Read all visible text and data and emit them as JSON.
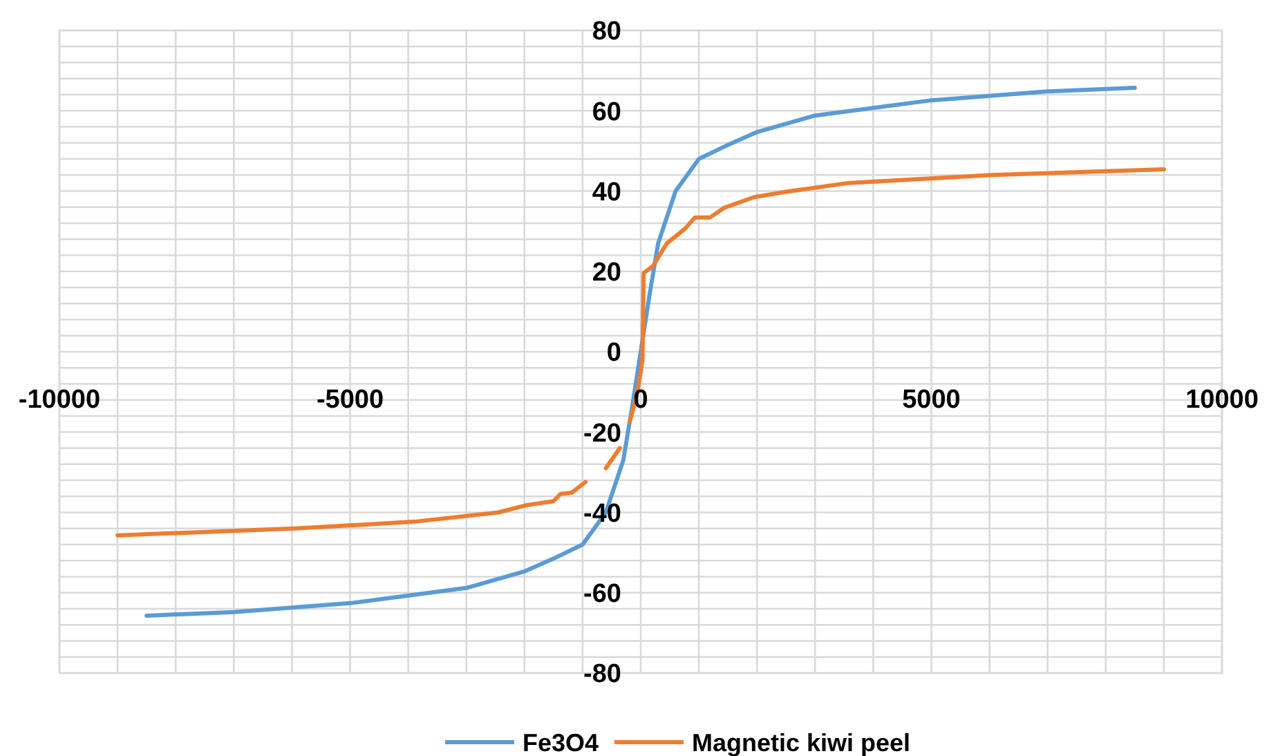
{
  "chart_data": {
    "type": "line",
    "xlim": [
      -10000,
      10000
    ],
    "ylim": [
      -80,
      80
    ],
    "xticks": [
      -10000,
      {
        "value": -9000,
        "label": null
      },
      {
        "value": -8000,
        "label": null
      },
      {
        "value": -7000,
        "label": null
      },
      {
        "value": -6000,
        "label": null
      },
      -5000,
      {
        "value": -4000,
        "label": null
      },
      {
        "value": -3000,
        "label": null
      },
      {
        "value": -2000,
        "label": null
      },
      {
        "value": -1000,
        "label": null
      },
      0,
      {
        "value": 1000,
        "label": null
      },
      {
        "value": 2000,
        "label": null
      },
      {
        "value": 3000,
        "label": null
      },
      {
        "value": 4000,
        "label": null
      },
      5000,
      {
        "value": 6000,
        "label": null
      },
      {
        "value": 7000,
        "label": null
      },
      {
        "value": 8000,
        "label": null
      },
      {
        "value": 9000,
        "label": null
      },
      10000
    ],
    "yticks": [
      -80,
      {
        "value": -76,
        "label": null
      },
      {
        "value": -72,
        "label": null
      },
      {
        "value": -68,
        "label": null
      },
      {
        "value": -64,
        "label": null
      },
      -60,
      {
        "value": -56,
        "label": null
      },
      {
        "value": -52,
        "label": null
      },
      {
        "value": -48,
        "label": null
      },
      {
        "value": -44,
        "label": null
      },
      -40,
      {
        "value": -36,
        "label": null
      },
      {
        "value": -32,
        "label": null
      },
      {
        "value": -28,
        "label": null
      },
      {
        "value": -24,
        "label": null
      },
      -20,
      {
        "value": -16,
        "label": null
      },
      {
        "value": -12,
        "label": null
      },
      {
        "value": -8,
        "label": null
      },
      {
        "value": -4,
        "label": null
      },
      0,
      {
        "value": 4,
        "label": null
      },
      {
        "value": 8,
        "label": null
      },
      {
        "value": 12,
        "label": null
      },
      {
        "value": 16,
        "label": null
      },
      20,
      {
        "value": 24,
        "label": null
      },
      {
        "value": 28,
        "label": null
      },
      {
        "value": 32,
        "label": null
      },
      {
        "value": 36,
        "label": null
      },
      40,
      {
        "value": 44,
        "label": null
      },
      {
        "value": 48,
        "label": null
      },
      {
        "value": 52,
        "label": null
      },
      {
        "value": 56,
        "label": null
      },
      60,
      {
        "value": 64,
        "label": null
      },
      {
        "value": 68,
        "label": null
      },
      {
        "value": 72,
        "label": null
      },
      {
        "value": 76,
        "label": null
      },
      80
    ],
    "grid": true,
    "legend": "bottom",
    "marker": "none",
    "line_style": "solid",
    "series": [
      {
        "name": "Fe3O4",
        "color": "#5b9bd5",
        "x": [
          -8500,
          -7000,
          -5000,
          -3000,
          -2000,
          -1500,
          -1000,
          -600,
          -300,
          -150,
          0,
          150,
          300,
          600,
          1000,
          1500,
          2000,
          3000,
          5000,
          7000,
          8500
        ],
        "values": [
          -65.7,
          -64.8,
          -62.6,
          -58.8,
          -54.7,
          -51.5,
          -48,
          -40,
          -27,
          -14,
          0,
          14,
          27,
          40,
          48,
          51.5,
          54.7,
          58.8,
          62.6,
          64.8,
          65.7
        ]
      },
      {
        "name": "Magnetic kiwi peel",
        "color": "#ed7d31",
        "x": [
          -9000,
          -5950,
          -3880,
          -2450,
          -1970,
          -1500,
          -1380,
          -1190,
          -950,
          -800,
          -600,
          -360,
          -300,
          -190,
          -70,
          0,
          30,
          50,
          210,
          450,
          760,
          930,
          1190,
          1430,
          1950,
          2540,
          3570,
          6040,
          9000
        ],
        "values": [
          -45.7,
          -44,
          -42.3,
          -40,
          -38.2,
          -37.2,
          -35.4,
          -35.1,
          -32.4,
          null,
          -29,
          -24,
          null,
          -17.5,
          -11,
          -5,
          -2,
          19.6,
          21.3,
          27,
          30.6,
          33.4,
          33.4,
          35.8,
          38.5,
          39.9,
          42,
          44,
          45.4
        ]
      }
    ]
  }
}
